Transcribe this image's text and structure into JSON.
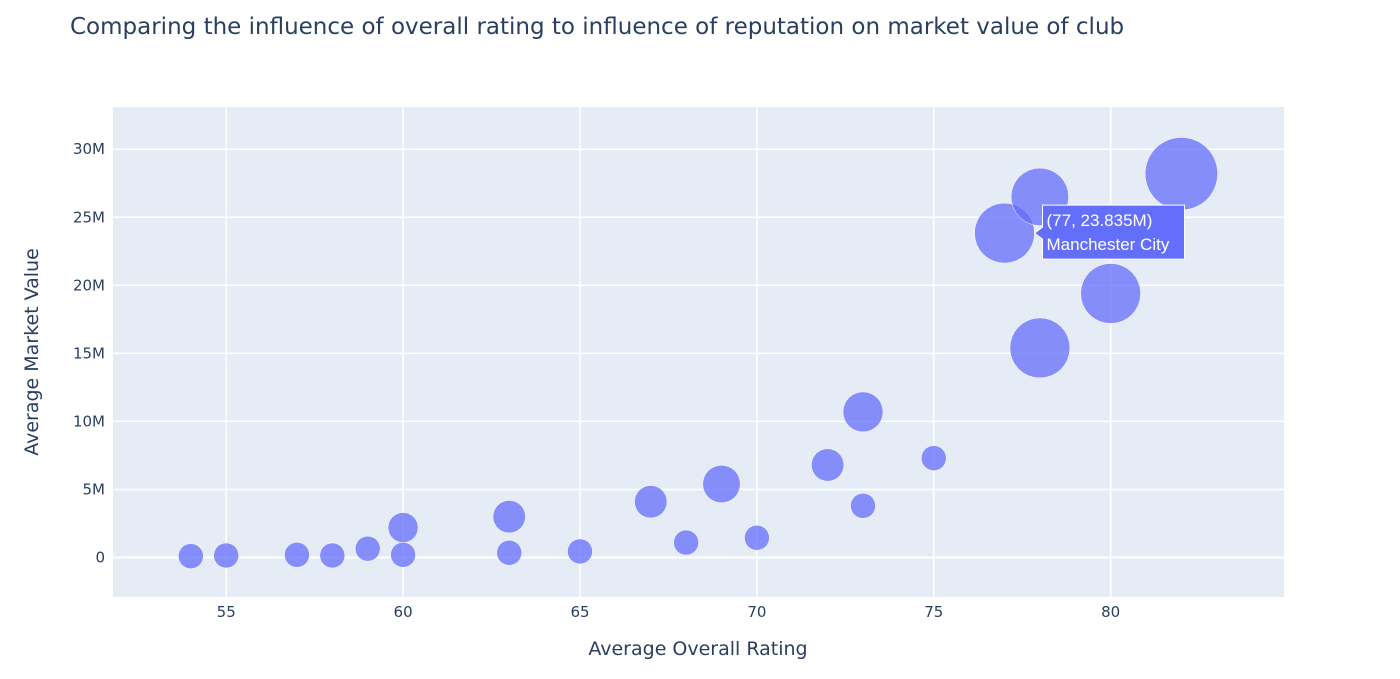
{
  "chart_data": {
    "type": "scatter",
    "title": "Comparing the influence of overall rating to influence of reputation on market value of club",
    "xlabel": "Average Overall Rating",
    "ylabel": "Average Market Value",
    "xlim": [
      51.8,
      84.9
    ],
    "ylim": [
      -2900000,
      33100000
    ],
    "x_ticks": [
      55,
      60,
      65,
      70,
      75,
      80
    ],
    "x_tick_labels": [
      "55",
      "60",
      "65",
      "70",
      "75",
      "80"
    ],
    "y_ticks": [
      0,
      5000000,
      10000000,
      15000000,
      20000000,
      25000000,
      30000000
    ],
    "y_tick_labels": [
      "0",
      "5M",
      "10M",
      "15M",
      "20M",
      "25M",
      "30M"
    ],
    "grid": true,
    "marker_color": "#636efa",
    "plot_bg": "#e5ecf6",
    "points": [
      {
        "x": 54,
        "y": 100000,
        "size": 1
      },
      {
        "x": 55,
        "y": 150000,
        "size": 1
      },
      {
        "x": 57,
        "y": 200000,
        "size": 1
      },
      {
        "x": 58,
        "y": 150000,
        "size": 1
      },
      {
        "x": 59,
        "y": 650000,
        "size": 1
      },
      {
        "x": 60,
        "y": 200000,
        "size": 1
      },
      {
        "x": 60,
        "y": 2200000,
        "size": 1.2
      },
      {
        "x": 63,
        "y": 350000,
        "size": 1
      },
      {
        "x": 63,
        "y": 3000000,
        "size": 1.3
      },
      {
        "x": 65,
        "y": 450000,
        "size": 1
      },
      {
        "x": 67,
        "y": 4100000,
        "size": 1.3
      },
      {
        "x": 68,
        "y": 1100000,
        "size": 1
      },
      {
        "x": 69,
        "y": 5400000,
        "size": 1.5
      },
      {
        "x": 70,
        "y": 1450000,
        "size": 1
      },
      {
        "x": 72,
        "y": 6800000,
        "size": 1.3
      },
      {
        "x": 73,
        "y": 3800000,
        "size": 1
      },
      {
        "x": 73,
        "y": 10700000,
        "size": 1.6
      },
      {
        "x": 75,
        "y": 7300000,
        "size": 1
      },
      {
        "x": 77,
        "y": 23835000,
        "size": 2.4
      },
      {
        "x": 78,
        "y": 15400000,
        "size": 2.4
      },
      {
        "x": 78,
        "y": 26500000,
        "size": 2.3
      },
      {
        "x": 80,
        "y": 19400000,
        "size": 2.4
      },
      {
        "x": 82,
        "y": 28200000,
        "size": 2.9
      }
    ],
    "hover": {
      "point_index": 18,
      "line1": "(77, 23.835M)",
      "line2": "Manchester City"
    }
  }
}
